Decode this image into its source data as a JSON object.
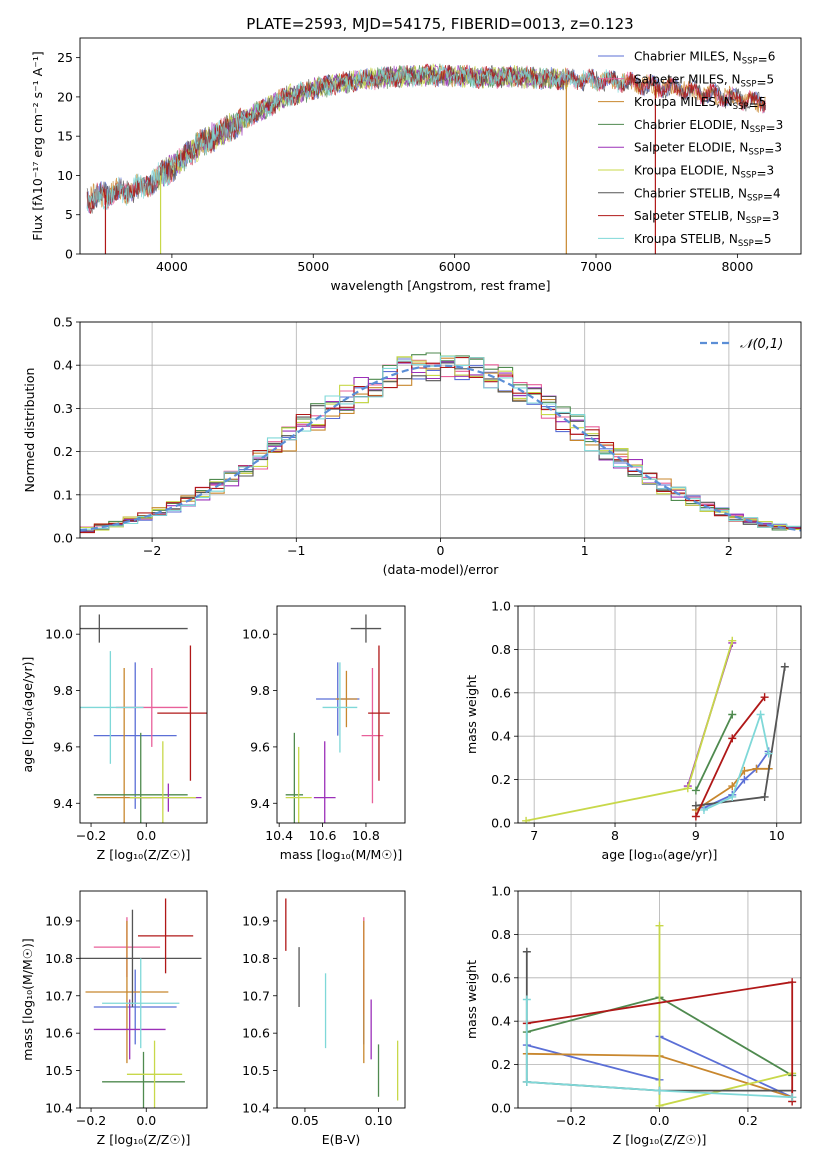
{
  "figure": {
    "title": "PLATE=2593, MJD=54175, FIBERID=0013, z=0.123"
  },
  "models": [
    {
      "name": "Chabrier MILES",
      "nssp": "6",
      "color": "#5b6fd6"
    },
    {
      "name": "Salpeter MILES",
      "nssp": "5",
      "color": "#e8609a"
    },
    {
      "name": "Kroupa MILES",
      "nssp": "5",
      "color": "#c8872e"
    },
    {
      "name": "Chabrier ELODIE",
      "nssp": "3",
      "color": "#4f8a4f"
    },
    {
      "name": "Salpeter ELODIE",
      "nssp": "3",
      "color": "#9b30b8"
    },
    {
      "name": "Kroupa ELODIE",
      "nssp": "3",
      "color": "#c8d84a"
    },
    {
      "name": "Chabrier STELIB",
      "nssp": "4",
      "color": "#555555"
    },
    {
      "name": "Salpeter STELIB",
      "nssp": "3",
      "color": "#b01818"
    },
    {
      "name": "Kroupa STELIB",
      "nssp": "5",
      "color": "#7fd8d8"
    }
  ],
  "chart_data": [
    {
      "type": "line",
      "id": "spectrum",
      "title": "PLATE=2593, MJD=54175, FIBERID=0013, z=0.123",
      "xlabel": "wavelength [Angstrom, rest frame]",
      "ylabel": "Flux [fλ10⁻¹⁷ erg cm⁻² s⁻¹ A⁻¹]",
      "xlim": [
        3350,
        8450
      ],
      "ylim": [
        0,
        27.5
      ],
      "xticks": [
        "4000",
        "5000",
        "6000",
        "7000",
        "8000"
      ],
      "yticks": [
        "0",
        "5",
        "10",
        "15",
        "20",
        "25"
      ],
      "legend_position": "upper-right",
      "legend": [
        "Chabrier MILES, N_SSP=6",
        "Salpeter MILES, N_SSP=5",
        "Kroupa MILES, N_SSP=5",
        "Chabrier ELODIE, N_SSP=3",
        "Salpeter ELODIE, N_SSP=3",
        "Kroupa ELODIE, N_SSP=3",
        "Chabrier STELIB, N_SSP=4",
        "Salpeter STELIB, N_SSP=3",
        "Kroupa STELIB, N_SSP=5"
      ],
      "continuum": {
        "x": [
          3400,
          3600,
          3800,
          4000,
          4200,
          4400,
          4600,
          4800,
          5000,
          5200,
          5400,
          5600,
          5800,
          6000,
          6200,
          6400,
          6600,
          6800,
          7000,
          7200,
          7400,
          7600,
          7800,
          8000,
          8200
        ],
        "y": [
          7.0,
          7.8,
          8.5,
          11.0,
          14.0,
          16.0,
          18.0,
          20.0,
          21.0,
          21.8,
          22.3,
          22.6,
          22.8,
          22.7,
          22.5,
          22.6,
          22.4,
          22.2,
          22.1,
          21.9,
          21.4,
          21.0,
          20.3,
          19.8,
          19.2
        ]
      },
      "noise_amplitude": 2.0,
      "spikes": [
        {
          "x": 3530,
          "y": 0
        },
        {
          "x": 3920,
          "y": 0
        },
        {
          "x": 6790,
          "y": 0
        },
        {
          "x": 7420,
          "y": 0
        }
      ]
    },
    {
      "type": "histogram",
      "id": "residuals",
      "xlabel": "(data-model)/error",
      "ylabel": "Normed distribution",
      "xlim": [
        -2.5,
        2.5
      ],
      "ylim": [
        0,
        0.5
      ],
      "xticks": [
        "−2",
        "−1",
        "0",
        "1",
        "2"
      ],
      "yticks": [
        "0.0",
        "0.1",
        "0.2",
        "0.3",
        "0.4",
        "0.5"
      ],
      "bin_width": 0.1,
      "grid": true,
      "reference_curve": {
        "label": "𝒩(0,1)",
        "mean": 0,
        "sigma": 1,
        "color": "#5b8ed6"
      },
      "legend_position": "upper-right"
    },
    {
      "type": "errorbar",
      "id": "age-vs-z",
      "xlabel": "Z [log₁₀(Z/Z☉)]",
      "ylabel": "age  [log₁₀(age/yr)]",
      "xlim": [
        -0.24,
        0.22
      ],
      "ylim": [
        9.33,
        10.1
      ],
      "xticks": [
        {
          "v": -0.2,
          "t": "−0.2"
        },
        {
          "v": 0.0,
          "t": "0.0"
        }
      ],
      "yticks": [
        {
          "v": 9.4,
          "t": "9.4"
        },
        {
          "v": 9.6,
          "t": "9.6"
        },
        {
          "v": 9.8,
          "t": "9.8"
        },
        {
          "v": 10.0,
          "t": "10.0"
        }
      ],
      "points": [
        {
          "model": 0,
          "x": -0.04,
          "xerr": 0.15,
          "y": 9.64,
          "yerr": 0.26
        },
        {
          "model": 1,
          "x": 0.02,
          "xerr": 0.13,
          "y": 9.74,
          "yerr": 0.14
        },
        {
          "model": 2,
          "x": -0.08,
          "xerr": 0.1,
          "y": 9.42,
          "yerr": 0.46
        },
        {
          "model": 3,
          "x": -0.02,
          "xerr": 0.17,
          "y": 9.43,
          "yerr": 0.22
        },
        {
          "model": 4,
          "x": 0.08,
          "xerr": 0.12,
          "y": 9.42,
          "yerr": 0.05
        },
        {
          "model": 5,
          "x": 0.06,
          "xerr": 0.12,
          "y": 9.42,
          "yerr": 0.2
        },
        {
          "model": 6,
          "x": -0.17,
          "xerr": 0.32,
          "y": 10.02,
          "yerr": 0.05
        },
        {
          "model": 7,
          "x": 0.16,
          "xerr": 0.12,
          "y": 9.72,
          "yerr": 0.24
        },
        {
          "model": 8,
          "x": -0.13,
          "xerr": 0.12,
          "y": 9.74,
          "yerr": 0.2
        }
      ]
    },
    {
      "type": "errorbar",
      "id": "age-vs-mass",
      "xlabel": "mass [log₁₀(M/M☉)]",
      "ylabel": "",
      "xlim": [
        10.39,
        10.98
      ],
      "ylim": [
        9.33,
        10.1
      ],
      "xticks": [
        {
          "v": 10.4,
          "t": "10.4"
        },
        {
          "v": 10.6,
          "t": "10.6"
        },
        {
          "v": 10.8,
          "t": "10.8"
        }
      ],
      "yticks": [
        {
          "v": 9.4,
          "t": "9.4"
        },
        {
          "v": 9.6,
          "t": "9.6"
        },
        {
          "v": 9.8,
          "t": "9.8"
        },
        {
          "v": 10.0,
          "t": "10.0"
        }
      ],
      "points": [
        {
          "model": 0,
          "x": 10.67,
          "xerr": 0.1,
          "y": 9.77,
          "yerr": 0.13
        },
        {
          "model": 1,
          "x": 10.83,
          "xerr": 0.05,
          "y": 9.64,
          "yerr": 0.24
        },
        {
          "model": 2,
          "x": 10.71,
          "xerr": 0.05,
          "y": 9.77,
          "yerr": 0.1
        },
        {
          "model": 3,
          "x": 10.47,
          "xerr": 0.04,
          "y": 9.43,
          "yerr": 0.22
        },
        {
          "model": 4,
          "x": 10.61,
          "xerr": 0.05,
          "y": 9.42,
          "yerr": 0.2
        },
        {
          "model": 5,
          "x": 10.49,
          "xerr": 0.06,
          "y": 9.42,
          "yerr": 0.18
        },
        {
          "model": 6,
          "x": 10.8,
          "xerr": 0.07,
          "y": 10.02,
          "yerr": 0.05
        },
        {
          "model": 7,
          "x": 10.86,
          "xerr": 0.05,
          "y": 9.72,
          "yerr": 0.24
        },
        {
          "model": 8,
          "x": 10.68,
          "xerr": 0.08,
          "y": 9.74,
          "yerr": 0.16
        }
      ]
    },
    {
      "type": "line",
      "id": "weight-vs-age",
      "xlabel": "age  [log₁₀(age/yr)]",
      "ylabel": "mass weight",
      "xlim": [
        6.8,
        10.3
      ],
      "ylim": [
        0,
        1
      ],
      "grid": true,
      "xticks": [
        {
          "v": 7,
          "t": "7"
        },
        {
          "v": 8,
          "t": "8"
        },
        {
          "v": 9,
          "t": "9"
        },
        {
          "v": 10,
          "t": "10"
        }
      ],
      "yticks": [
        {
          "v": 0,
          "t": "0.0"
        },
        {
          "v": 0.2,
          "t": "0.2"
        },
        {
          "v": 0.4,
          "t": "0.4"
        },
        {
          "v": 0.6,
          "t": "0.6"
        },
        {
          "v": 0.8,
          "t": "0.8"
        },
        {
          "v": 1.0,
          "t": "1.0"
        }
      ],
      "series": [
        {
          "model": 0,
          "x": [
            9.1,
            9.45,
            9.6,
            9.75,
            9.9
          ],
          "y": [
            0.07,
            0.13,
            0.2,
            0.25,
            0.33
          ]
        },
        {
          "model": 2,
          "x": [
            9.0,
            9.45,
            9.6,
            9.75,
            9.9
          ],
          "y": [
            0.06,
            0.17,
            0.24,
            0.25,
            0.25
          ]
        },
        {
          "model": 3,
          "x": [
            9.0,
            9.45
          ],
          "y": [
            0.15,
            0.5
          ]
        },
        {
          "model": 4,
          "x": [
            8.9,
            9.45
          ],
          "y": [
            0.17,
            0.83
          ]
        },
        {
          "model": 5,
          "x": [
            6.9,
            8.9,
            9.45
          ],
          "y": [
            0.01,
            0.16,
            0.84
          ]
        },
        {
          "model": 6,
          "x": [
            9.0,
            9.85,
            10.1
          ],
          "y": [
            0.08,
            0.12,
            0.72
          ]
        },
        {
          "model": 7,
          "x": [
            9.0,
            9.45,
            9.85
          ],
          "y": [
            0.03,
            0.39,
            0.58
          ]
        },
        {
          "model": 8,
          "x": [
            9.1,
            9.45,
            9.8,
            9.9
          ],
          "y": [
            0.06,
            0.12,
            0.5,
            0.32
          ]
        }
      ]
    },
    {
      "type": "errorbar",
      "id": "mass-vs-z",
      "xlabel": "Z [log₁₀(Z/Z☉)]",
      "ylabel": "mass [log₁₀(M/M☉)]",
      "xlim": [
        -0.24,
        0.22
      ],
      "ylim": [
        10.4,
        10.98
      ],
      "xticks": [
        {
          "v": -0.2,
          "t": "−0.2"
        },
        {
          "v": 0.0,
          "t": "0.0"
        }
      ],
      "yticks": [
        {
          "v": 10.4,
          "t": "10.4"
        },
        {
          "v": 10.5,
          "t": "10.5"
        },
        {
          "v": 10.6,
          "t": "10.6"
        },
        {
          "v": 10.7,
          "t": "10.7"
        },
        {
          "v": 10.8,
          "t": "10.8"
        },
        {
          "v": 10.9,
          "t": "10.9"
        }
      ],
      "points": [
        {
          "model": 0,
          "x": -0.04,
          "xerr": 0.15,
          "y": 10.67,
          "yerr": 0.1
        },
        {
          "model": 1,
          "x": -0.07,
          "xerr": 0.12,
          "y": 10.83,
          "yerr": 0.08
        },
        {
          "model": 2,
          "x": -0.07,
          "xerr": 0.15,
          "y": 10.71,
          "yerr": 0.19
        },
        {
          "model": 3,
          "x": -0.01,
          "xerr": 0.15,
          "y": 10.47,
          "yerr": 0.08
        },
        {
          "model": 4,
          "x": -0.06,
          "xerr": 0.13,
          "y": 10.61,
          "yerr": 0.08
        },
        {
          "model": 5,
          "x": 0.03,
          "xerr": 0.1,
          "y": 10.49,
          "yerr": 0.09
        },
        {
          "model": 6,
          "x": -0.05,
          "xerr": 0.25,
          "y": 10.8,
          "yerr": 0.13
        },
        {
          "model": 7,
          "x": 0.07,
          "xerr": 0.1,
          "y": 10.86,
          "yerr": 0.1
        },
        {
          "model": 8,
          "x": -0.02,
          "xerr": 0.14,
          "y": 10.68,
          "yerr": 0.12
        }
      ]
    },
    {
      "type": "errorbar",
      "id": "mass-vs-ebv",
      "xlabel": "E(B-V)",
      "ylabel": "",
      "xlim": [
        0.031,
        0.118
      ],
      "ylim": [
        10.4,
        10.98
      ],
      "xticks": [
        {
          "v": 0.05,
          "t": "0.05"
        },
        {
          "v": 0.1,
          "t": "0.10"
        }
      ],
      "yticks": [
        {
          "v": 10.4,
          "t": "10.4"
        },
        {
          "v": 10.5,
          "t": "10.5"
        },
        {
          "v": 10.6,
          "t": "10.6"
        },
        {
          "v": 10.7,
          "t": "10.7"
        },
        {
          "v": 10.8,
          "t": "10.8"
        },
        {
          "v": 10.9,
          "t": "10.9"
        }
      ],
      "points": [
        {
          "model": 0,
          "x": 0.09,
          "xerr": 0,
          "y": 10.67,
          "yerr": 0.1
        },
        {
          "model": 1,
          "x": 0.09,
          "xerr": 0,
          "y": 10.78,
          "yerr": 0.13
        },
        {
          "model": 2,
          "x": 0.09,
          "xerr": 0,
          "y": 10.71,
          "yerr": 0.19
        },
        {
          "model": 3,
          "x": 0.1,
          "xerr": 0,
          "y": 10.5,
          "yerr": 0.07
        },
        {
          "model": 4,
          "x": 0.095,
          "xerr": 0,
          "y": 10.61,
          "yerr": 0.08
        },
        {
          "model": 5,
          "x": 0.113,
          "xerr": 0,
          "y": 10.5,
          "yerr": 0.08
        },
        {
          "model": 6,
          "x": 0.046,
          "xerr": 0,
          "y": 10.75,
          "yerr": 0.08
        },
        {
          "model": 7,
          "x": 0.037,
          "xerr": 0,
          "y": 10.89,
          "yerr": 0.07
        },
        {
          "model": 8,
          "x": 0.064,
          "xerr": 0,
          "y": 10.66,
          "yerr": 0.1
        }
      ]
    },
    {
      "type": "line",
      "id": "weight-vs-z",
      "xlabel": "Z [log₁₀(Z/Z☉)]",
      "ylabel": "mass weight",
      "xlim": [
        -0.32,
        0.32
      ],
      "ylim": [
        0,
        1
      ],
      "grid": true,
      "xticks": [
        {
          "v": -0.2,
          "t": "−0.2"
        },
        {
          "v": 0.0,
          "t": "0.0"
        },
        {
          "v": 0.2,
          "t": "0.2"
        }
      ],
      "yticks": [
        {
          "v": 0,
          "t": "0.0"
        },
        {
          "v": 0.2,
          "t": "0.2"
        },
        {
          "v": 0.4,
          "t": "0.4"
        },
        {
          "v": 0.6,
          "t": "0.6"
        },
        {
          "v": 0.8,
          "t": "0.8"
        },
        {
          "v": 1.0,
          "t": "1.0"
        }
      ],
      "series": [
        {
          "model": 0,
          "x": [
            -0.3,
            0.0,
            0.0,
            0.3
          ],
          "y": [
            0.29,
            0.13,
            0.33,
            0.05
          ]
        },
        {
          "model": 2,
          "x": [
            -0.3,
            0.0,
            0.3
          ],
          "y": [
            0.25,
            0.24,
            0.05
          ]
        },
        {
          "model": 3,
          "x": [
            -0.3,
            0.0,
            0.3
          ],
          "y": [
            0.35,
            0.51,
            0.15
          ]
        },
        {
          "model": 5,
          "x": [
            0.0,
            0.0,
            0.3
          ],
          "y": [
            0.84,
            0.01,
            0.16
          ]
        },
        {
          "model": 6,
          "x": [
            -0.3,
            -0.3,
            0.0,
            0.3
          ],
          "y": [
            0.72,
            0.12,
            0.08,
            0.08
          ]
        },
        {
          "model": 7,
          "x": [
            -0.3,
            0.3,
            0.3
          ],
          "y": [
            0.39,
            0.58,
            0.03
          ]
        },
        {
          "model": 8,
          "x": [
            -0.3,
            -0.3,
            0.0,
            0.3
          ],
          "y": [
            0.5,
            0.12,
            0.08,
            0.05
          ]
        }
      ]
    }
  ]
}
